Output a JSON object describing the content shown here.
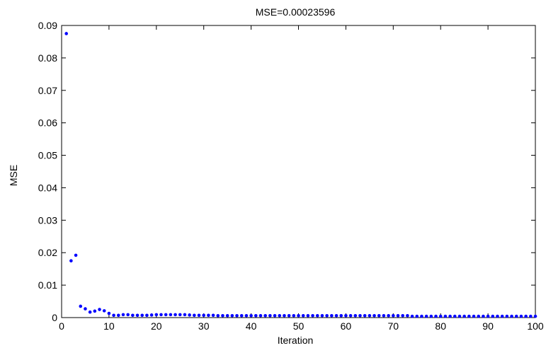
{
  "chart_data": {
    "type": "scatter",
    "title": "MSE=0.00023596",
    "xlabel": "Iteration",
    "ylabel": "MSE",
    "xlim": [
      0,
      100
    ],
    "ylim": [
      0,
      0.09
    ],
    "xticks": [
      "0",
      "10",
      "20",
      "30",
      "40",
      "50",
      "60",
      "70",
      "80",
      "90",
      "100"
    ],
    "yticks": [
      "0",
      "0.01",
      "0.02",
      "0.03",
      "0.04",
      "0.05",
      "0.06",
      "0.07",
      "0.08",
      "0.09"
    ],
    "grid": false,
    "marker_color": "#0000ff",
    "series": [
      {
        "x": [
          1,
          2,
          3,
          4,
          5,
          6,
          7,
          8,
          9,
          10,
          11,
          12,
          13,
          14,
          15,
          16,
          17,
          18,
          19,
          20,
          21,
          22,
          23,
          24,
          25,
          26,
          27,
          28,
          29,
          30,
          31,
          32,
          33,
          34,
          35,
          36,
          37,
          38,
          39,
          40,
          41,
          42,
          43,
          44,
          45,
          46,
          47,
          48,
          49,
          50,
          51,
          52,
          53,
          54,
          55,
          56,
          57,
          58,
          59,
          60,
          61,
          62,
          63,
          64,
          65,
          66,
          67,
          68,
          69,
          70,
          71,
          72,
          73,
          74,
          75,
          76,
          77,
          78,
          79,
          80,
          81,
          82,
          83,
          84,
          85,
          86,
          87,
          88,
          89,
          90,
          91,
          92,
          93,
          94,
          95,
          96,
          97,
          98,
          99,
          100
        ],
        "y": [
          0.0875,
          0.0175,
          0.0192,
          0.0035,
          0.0027,
          0.0017,
          0.002,
          0.0025,
          0.0021,
          0.0013,
          0.0007,
          0.0007,
          0.0009,
          0.0009,
          0.0007,
          0.0007,
          0.0007,
          0.0007,
          0.0008,
          0.0009,
          0.0009,
          0.0009,
          0.0009,
          0.0009,
          0.0009,
          0.0009,
          0.0008,
          0.0007,
          0.0007,
          0.0007,
          0.0007,
          0.0007,
          0.0006,
          0.0006,
          0.0006,
          0.0006,
          0.0006,
          0.0006,
          0.0006,
          0.0006,
          0.0006,
          0.0006,
          0.0006,
          0.0006,
          0.0006,
          0.0006,
          0.0006,
          0.0006,
          0.0006,
          0.0006,
          0.0006,
          0.0006,
          0.0006,
          0.0006,
          0.0006,
          0.0006,
          0.0006,
          0.0006,
          0.0006,
          0.0006,
          0.0006,
          0.0006,
          0.0006,
          0.0006,
          0.0006,
          0.0006,
          0.0006,
          0.0006,
          0.0006,
          0.0006,
          0.0006,
          0.0006,
          0.0006,
          0.0004,
          0.0004,
          0.0004,
          0.0004,
          0.0004,
          0.0004,
          0.0004,
          0.0004,
          0.0004,
          0.0004,
          0.0004,
          0.0004,
          0.0004,
          0.0004,
          0.0004,
          0.0004,
          0.0004,
          0.0004,
          0.0004,
          0.0004,
          0.0004,
          0.0004,
          0.0004,
          0.0004,
          0.0004,
          0.0004,
          0.0004
        ]
      }
    ]
  }
}
